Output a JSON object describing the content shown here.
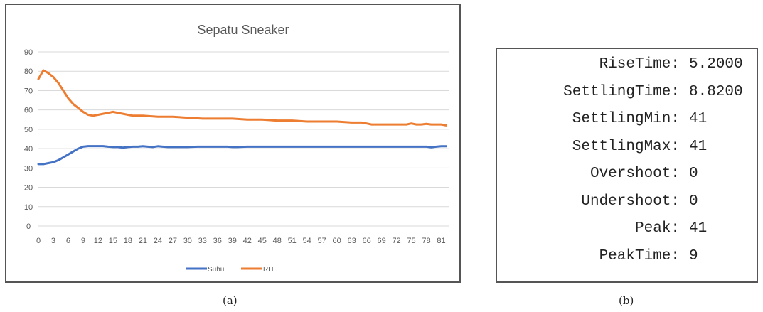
{
  "panel_a": {
    "caption": "(a)"
  },
  "panel_b": {
    "caption": "(b)",
    "stats": [
      {
        "name": "RiseTime:",
        "value": "5.2000"
      },
      {
        "name": "SettlingTime:",
        "value": "8.8200"
      },
      {
        "name": "SettlingMin:",
        "value": "41"
      },
      {
        "name": "SettlingMax:",
        "value": "41"
      },
      {
        "name": "Overshoot:",
        "value": "0"
      },
      {
        "name": "Undershoot:",
        "value": "0"
      },
      {
        "name": "Peak:",
        "value": "41"
      },
      {
        "name": "PeakTime:",
        "value": "9"
      }
    ]
  },
  "chart_data": {
    "type": "line",
    "title": "Sepatu Sneaker",
    "xlabel": "",
    "ylabel": "",
    "ylim": [
      0,
      90
    ],
    "yticks": [
      0,
      10,
      20,
      30,
      40,
      50,
      60,
      70,
      80,
      90
    ],
    "xlim": [
      0,
      82
    ],
    "xticks": [
      0,
      3,
      6,
      9,
      12,
      15,
      18,
      21,
      24,
      27,
      30,
      33,
      36,
      39,
      42,
      45,
      48,
      51,
      54,
      57,
      60,
      63,
      66,
      69,
      72,
      75,
      78,
      81
    ],
    "grid": true,
    "legend_position": "bottom",
    "series": [
      {
        "name": "Suhu",
        "color": "#4472c4",
        "x": [
          0,
          1,
          2,
          3,
          4,
          5,
          6,
          7,
          8,
          9,
          10,
          11,
          12,
          13,
          14,
          15,
          16,
          17,
          18,
          19,
          20,
          21,
          22,
          23,
          24,
          25,
          26,
          27,
          28,
          30,
          32,
          34,
          36,
          38,
          39,
          40,
          42,
          45,
          48,
          51,
          54,
          57,
          60,
          63,
          66,
          69,
          72,
          75,
          76,
          77,
          78,
          79,
          80,
          81,
          82
        ],
        "values": [
          32,
          32,
          32.5,
          33,
          34,
          35.5,
          37,
          38.5,
          40,
          41,
          41.3,
          41.3,
          41.3,
          41.3,
          41,
          40.8,
          40.8,
          40.5,
          40.8,
          41,
          41,
          41.2,
          41,
          40.8,
          41.2,
          41,
          40.8,
          40.8,
          40.8,
          40.8,
          41,
          41,
          41,
          41,
          40.8,
          40.8,
          41,
          41,
          41,
          41,
          41,
          41,
          41,
          41,
          41,
          41,
          41,
          41,
          41,
          41,
          41,
          40.7,
          41,
          41.2,
          41.2
        ]
      },
      {
        "name": "RH",
        "color": "#ed7d31",
        "x": [
          0,
          1,
          2,
          3,
          4,
          5,
          6,
          7,
          8,
          9,
          10,
          11,
          12,
          13,
          14,
          15,
          16,
          17,
          18,
          19,
          20,
          21,
          24,
          27,
          30,
          33,
          36,
          39,
          42,
          45,
          48,
          51,
          54,
          57,
          60,
          63,
          65,
          66,
          67,
          69,
          72,
          74,
          75,
          76,
          77,
          78,
          79,
          80,
          81,
          82
        ],
        "values": [
          76,
          80.5,
          79,
          77,
          74,
          70,
          66,
          63,
          61,
          59,
          57.5,
          57,
          57.5,
          58,
          58.5,
          59,
          58.5,
          58,
          57.5,
          57,
          57,
          57,
          56.5,
          56.5,
          56,
          55.5,
          55.5,
          55.5,
          55,
          55,
          54.5,
          54.5,
          54,
          54,
          54,
          53.5,
          53.5,
          53,
          52.5,
          52.5,
          52.5,
          52.5,
          53,
          52.5,
          52.5,
          52.8,
          52.5,
          52.5,
          52.5,
          52
        ]
      }
    ]
  }
}
